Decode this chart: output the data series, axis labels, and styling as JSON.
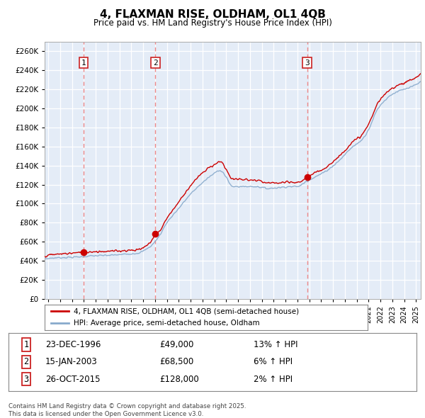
{
  "title": "4, FLAXMAN RISE, OLDHAM, OL1 4QB",
  "subtitle": "Price paid vs. HM Land Registry's House Price Index (HPI)",
  "ylim": [
    0,
    270000
  ],
  "xlim_start": 1993.7,
  "xlim_end": 2025.4,
  "sale_dates": [
    1996.98,
    2003.04,
    2015.82
  ],
  "sale_prices": [
    49000,
    68500,
    128000
  ],
  "sale_labels": [
    "1",
    "2",
    "3"
  ],
  "sale_info": [
    {
      "label": "1",
      "date": "23-DEC-1996",
      "price": "£49,000",
      "hpi": "13% ↑ HPI"
    },
    {
      "label": "2",
      "date": "15-JAN-2003",
      "price": "£68,500",
      "hpi": "6% ↑ HPI"
    },
    {
      "label": "3",
      "date": "26-OCT-2015",
      "price": "£128,000",
      "hpi": "2% ↑ HPI"
    }
  ],
  "legend_entries": [
    "4, FLAXMAN RISE, OLDHAM, OL1 4QB (semi-detached house)",
    "HPI: Average price, semi-detached house, Oldham"
  ],
  "footer": "Contains HM Land Registry data © Crown copyright and database right 2025.\nThis data is licensed under the Open Government Licence v3.0.",
  "line_color_red": "#CC0000",
  "line_color_blue": "#88AACC",
  "bg_color": "#E4ECF7",
  "grid_color": "#FFFFFF",
  "sale_vline_color": "#EE8888",
  "label_box_color": "#CC2222"
}
